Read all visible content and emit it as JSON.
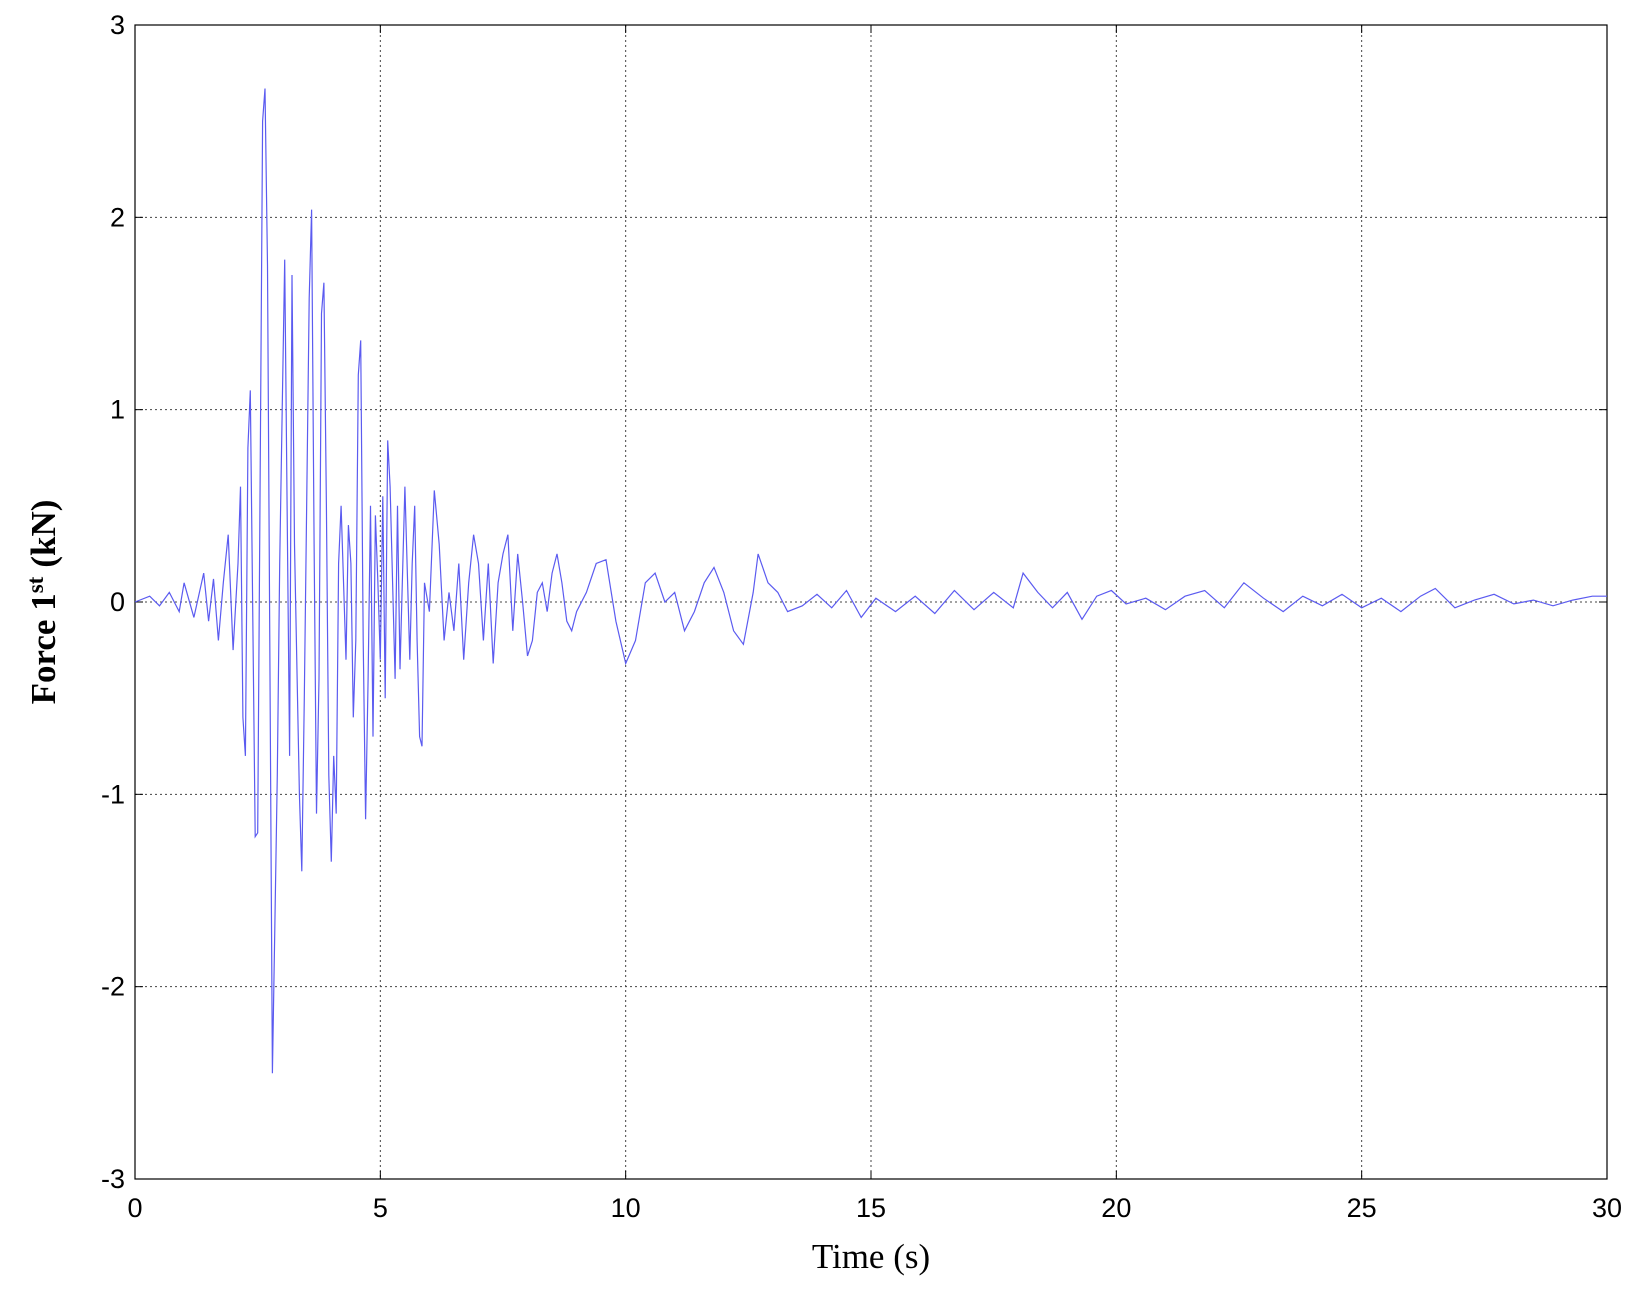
{
  "chart_data": {
    "type": "line",
    "xlabel": "Time (s)",
    "ylabel": {
      "text": "Force 1",
      "superscript": "st",
      "unit": "(kN)"
    },
    "x": [
      0,
      0.3,
      0.5,
      0.7,
      0.9,
      1.0,
      1.2,
      1.4,
      1.5,
      1.6,
      1.7,
      1.8,
      1.9,
      2.0,
      2.1,
      2.15,
      2.2,
      2.25,
      2.3,
      2.35,
      2.45,
      2.5,
      2.6,
      2.65,
      2.7,
      2.75,
      2.8,
      2.85,
      2.9,
      2.95,
      3.0,
      3.05,
      3.1,
      3.15,
      3.2,
      3.25,
      3.35,
      3.4,
      3.45,
      3.55,
      3.6,
      3.65,
      3.7,
      3.75,
      3.8,
      3.85,
      3.9,
      3.95,
      4.0,
      4.05,
      4.1,
      4.15,
      4.2,
      4.3,
      4.35,
      4.4,
      4.45,
      4.5,
      4.55,
      4.6,
      4.65,
      4.7,
      4.75,
      4.8,
      4.85,
      4.9,
      4.95,
      5.0,
      5.05,
      5.1,
      5.15,
      5.2,
      5.3,
      5.35,
      5.4,
      5.5,
      5.6,
      5.65,
      5.7,
      5.75,
      5.8,
      5.85,
      5.9,
      6.0,
      6.1,
      6.2,
      6.3,
      6.4,
      6.5,
      6.6,
      6.7,
      6.8,
      6.9,
      7.0,
      7.1,
      7.2,
      7.3,
      7.4,
      7.5,
      7.6,
      7.7,
      7.8,
      7.9,
      8.0,
      8.1,
      8.2,
      8.3,
      8.4,
      8.5,
      8.6,
      8.7,
      8.8,
      8.9,
      9.0,
      9.2,
      9.4,
      9.6,
      9.8,
      10.0,
      10.2,
      10.4,
      10.6,
      10.8,
      11.0,
      11.2,
      11.4,
      11.6,
      11.8,
      12.0,
      12.2,
      12.4,
      12.6,
      12.7,
      12.9,
      13.1,
      13.3,
      13.6,
      13.9,
      14.2,
      14.5,
      14.8,
      15.1,
      15.5,
      15.9,
      16.3,
      16.7,
      17.1,
      17.5,
      17.9,
      18.1,
      18.4,
      18.7,
      19.0,
      19.3,
      19.6,
      19.9,
      20.2,
      20.6,
      21.0,
      21.4,
      21.8,
      22.2,
      22.6,
      23.0,
      23.4,
      23.8,
      24.2,
      24.6,
      25.0,
      25.4,
      25.8,
      26.2,
      26.5,
      26.9,
      27.3,
      27.7,
      28.1,
      28.5,
      28.9,
      29.3,
      29.7,
      30
    ],
    "values": [
      0,
      0.03,
      -0.02,
      0.05,
      -0.05,
      0.1,
      -0.08,
      0.15,
      -0.1,
      0.12,
      -0.2,
      0.1,
      0.35,
      -0.25,
      0.2,
      0.6,
      -0.6,
      -0.8,
      0.8,
      1.1,
      -1.22,
      -1.2,
      2.5,
      2.67,
      1.75,
      -0.3,
      -2.45,
      -1.7,
      -0.9,
      0.2,
      1.0,
      1.78,
      0.5,
      -0.8,
      1.7,
      0.3,
      -1.0,
      -1.4,
      -0.5,
      1.58,
      2.04,
      0.3,
      -1.1,
      -0.4,
      1.5,
      1.66,
      0.5,
      -0.9,
      -1.35,
      -0.8,
      -1.1,
      0.2,
      0.5,
      -0.3,
      0.4,
      0.2,
      -0.6,
      -0.2,
      1.18,
      1.36,
      -0.2,
      -1.13,
      -0.4,
      0.5,
      -0.7,
      0.45,
      0.1,
      -0.3,
      0.55,
      -0.5,
      0.84,
      0.6,
      -0.4,
      0.5,
      -0.35,
      0.6,
      -0.3,
      0.2,
      0.5,
      -0.2,
      -0.7,
      -0.75,
      0.1,
      -0.05,
      0.58,
      0.3,
      -0.2,
      0.05,
      -0.15,
      0.2,
      -0.3,
      0.1,
      0.35,
      0.2,
      -0.2,
      0.2,
      -0.32,
      0.1,
      0.25,
      0.35,
      -0.15,
      0.25,
      0.0,
      -0.28,
      -0.2,
      0.05,
      0.1,
      -0.05,
      0.15,
      0.25,
      0.1,
      -0.1,
      -0.15,
      -0.05,
      0.05,
      0.2,
      0.22,
      -0.1,
      -0.32,
      -0.2,
      0.1,
      0.15,
      0.0,
      0.05,
      -0.15,
      -0.05,
      0.1,
      0.18,
      0.05,
      -0.15,
      -0.22,
      0.05,
      0.25,
      0.1,
      0.05,
      -0.05,
      -0.02,
      0.04,
      -0.03,
      0.06,
      -0.08,
      0.02,
      -0.05,
      0.03,
      -0.06,
      0.06,
      -0.04,
      0.05,
      -0.03,
      0.15,
      0.05,
      -0.03,
      0.05,
      -0.09,
      0.03,
      0.06,
      -0.01,
      0.02,
      -0.04,
      0.03,
      0.06,
      -0.03,
      0.1,
      0.02,
      -0.05,
      0.03,
      -0.02,
      0.04,
      -0.03,
      0.02,
      -0.05,
      0.03,
      0.07,
      -0.03,
      0.01,
      0.04,
      -0.01,
      0.01,
      -0.02,
      0.01,
      0.03,
      0.03
    ],
    "color": "#5b5bf0",
    "xlim": [
      0,
      30
    ],
    "xticks": [
      0,
      5,
      10,
      15,
      20,
      25,
      30
    ],
    "ylim": [
      -3,
      3
    ],
    "yticks": [
      -3,
      -2,
      -1,
      0,
      1,
      2,
      3
    ],
    "grid": true
  }
}
